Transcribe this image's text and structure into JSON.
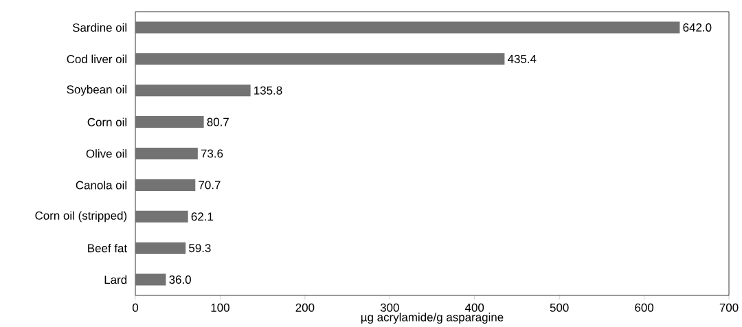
{
  "chart_data": {
    "type": "bar",
    "orientation": "horizontal",
    "xlabel": "µg acrylamide/g asparagine",
    "categories": [
      "Sardine oil",
      "Cod liver oil",
      "Soybean oil",
      "Corn oil",
      "Olive oil",
      "Canola oil",
      "Corn oil (stripped)",
      "Beef fat",
      "Lard"
    ],
    "values": [
      642.0,
      435.4,
      135.8,
      80.7,
      73.6,
      70.7,
      62.1,
      59.3,
      36.0
    ],
    "value_labels": [
      "642.0",
      "435.4",
      "135.8",
      "80.7",
      "73.6",
      "70.7",
      "62.1",
      "59.3",
      "36.0"
    ],
    "color": "#737373",
    "xlim": [
      0,
      700
    ],
    "xticks": [
      0,
      100,
      200,
      300,
      400,
      500,
      600,
      700
    ],
    "grid": false
  }
}
